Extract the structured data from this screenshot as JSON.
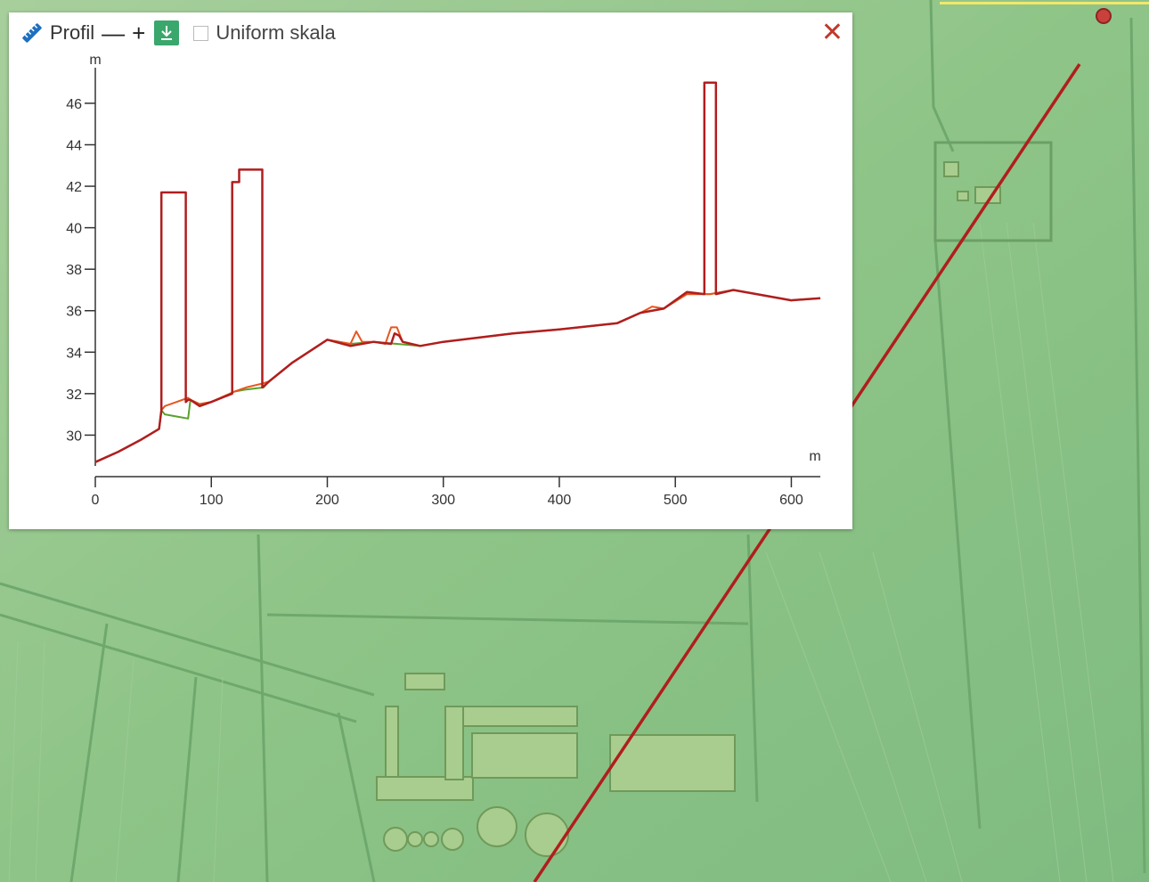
{
  "toolbar": {
    "title": "Profil",
    "zoom_out_label": "—",
    "zoom_in_label": "+",
    "uniform_label": "Uniform skala",
    "uniform_checked": false,
    "close_label": "✕"
  },
  "icons": {
    "ruler": "ruler-icon",
    "download": "download-icon",
    "close": "close-icon"
  },
  "colors": {
    "map_base": "#8fc489",
    "profile_line": "#b01e1e",
    "terrain": "#5aa02c",
    "surface": "#e8561e",
    "download_bg": "#3aa76d",
    "close": "#c0392b"
  },
  "chart_data": {
    "type": "line",
    "xlabel": "m",
    "ylabel": "m",
    "xlim": [
      0,
      625
    ],
    "ylim": [
      28.6,
      47.2
    ],
    "xticks": [
      0,
      100,
      200,
      300,
      400,
      500,
      600
    ],
    "yticks": [
      30,
      32,
      34,
      36,
      38,
      40,
      42,
      44,
      46
    ],
    "grid": false,
    "series": [
      {
        "color": "#5aa02c",
        "x": [
          0,
          20,
          40,
          55,
          57,
          60,
          70,
          80,
          82,
          90,
          100,
          120,
          130,
          145,
          150,
          170,
          200,
          220,
          240,
          260,
          280,
          300,
          330,
          360,
          400,
          450,
          470,
          490,
          510,
          530,
          550,
          570,
          600,
          625
        ],
        "y": [
          28.7,
          29.2,
          29.8,
          30.3,
          31.2,
          31.0,
          30.9,
          30.8,
          31.7,
          31.5,
          31.6,
          32.1,
          32.2,
          32.3,
          32.6,
          33.5,
          34.6,
          34.4,
          34.5,
          34.4,
          34.3,
          34.5,
          34.7,
          34.9,
          35.1,
          35.4,
          35.9,
          36.1,
          36.8,
          36.8,
          37.0,
          36.8,
          36.5,
          36.6
        ]
      },
      {
        "color": "#e8561e",
        "x": [
          0,
          20,
          40,
          55,
          57,
          60,
          70,
          80,
          82,
          90,
          100,
          120,
          130,
          145,
          150,
          170,
          200,
          220,
          225,
          230,
          240,
          250,
          255,
          260,
          265,
          280,
          300,
          330,
          360,
          400,
          450,
          470,
          480,
          490,
          510,
          530,
          550,
          570,
          600,
          625
        ],
        "y": [
          28.7,
          29.2,
          29.8,
          30.3,
          31.2,
          31.4,
          31.6,
          31.8,
          31.7,
          31.5,
          31.6,
          32.1,
          32.3,
          32.5,
          32.6,
          33.5,
          34.6,
          34.4,
          35.0,
          34.5,
          34.5,
          34.4,
          35.2,
          35.2,
          34.5,
          34.3,
          34.5,
          34.7,
          34.9,
          35.1,
          35.4,
          35.9,
          36.2,
          36.1,
          36.8,
          36.8,
          37.0,
          36.8,
          36.5,
          36.6
        ]
      },
      {
        "color": "#b01e1e",
        "x": [
          0,
          20,
          40,
          55,
          57,
          57,
          78,
          78,
          80,
          82,
          90,
          100,
          118,
          118,
          120,
          124,
          124,
          144,
          144,
          146,
          150,
          170,
          200,
          220,
          240,
          255,
          258,
          262,
          265,
          280,
          300,
          330,
          360,
          400,
          450,
          470,
          490,
          505,
          510,
          525,
          525,
          535,
          535,
          550,
          570,
          600,
          625
        ],
        "y": [
          28.7,
          29.2,
          29.8,
          30.3,
          31.2,
          41.7,
          41.7,
          31.6,
          31.7,
          31.7,
          31.4,
          31.6,
          32.0,
          42.2,
          42.2,
          42.2,
          42.8,
          42.8,
          32.3,
          32.4,
          32.6,
          33.5,
          34.6,
          34.3,
          34.5,
          34.4,
          34.9,
          34.8,
          34.5,
          34.3,
          34.5,
          34.7,
          34.9,
          35.1,
          35.4,
          35.9,
          36.1,
          36.7,
          36.9,
          36.8,
          47.0,
          47.0,
          36.8,
          37.0,
          36.8,
          36.5,
          36.6
        ]
      }
    ]
  }
}
